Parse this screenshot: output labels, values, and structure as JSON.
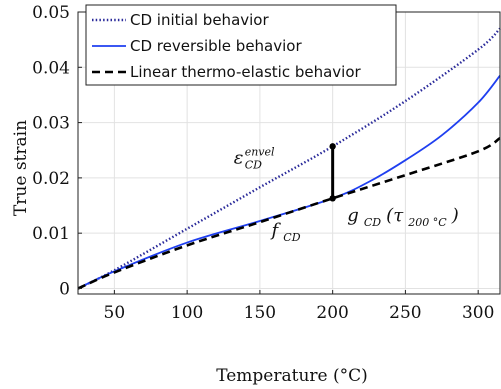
{
  "chart_data": {
    "type": "line",
    "xlabel": "Temperature (°C)",
    "ylabel": "True strain",
    "xlim": [
      25,
      315
    ],
    "ylim": [
      -0.001,
      0.05
    ],
    "x_ticks": [
      50,
      100,
      150,
      200,
      250,
      300
    ],
    "x_tick_labels": [
      "50",
      "100",
      "150",
      "200",
      "250",
      "300"
    ],
    "y_ticks": [
      0,
      0.01,
      0.02,
      0.03,
      0.04,
      0.05
    ],
    "y_tick_labels": [
      "0",
      "0.01",
      "0.02",
      "0.03",
      "0.04",
      "0.05"
    ],
    "grid": true,
    "legend_position": "top-left",
    "series": [
      {
        "name": "CD initial behavior",
        "color": "#2a2a9a",
        "style": "dotted",
        "x": [
          25,
          50,
          100,
          150,
          200,
          250,
          300,
          315
        ],
        "y": [
          0,
          0.0033,
          0.0108,
          0.0183,
          0.0257,
          0.0339,
          0.0432,
          0.047
        ]
      },
      {
        "name": "CD reversible behavior",
        "color": "#1f3ff0",
        "style": "solid",
        "x": [
          25,
          50,
          100,
          150,
          200,
          225,
          250,
          275,
          300,
          315
        ],
        "y": [
          0,
          0.0031,
          0.0083,
          0.0122,
          0.0163,
          0.0193,
          0.0232,
          0.0277,
          0.0336,
          0.0385
        ]
      },
      {
        "name": "Linear thermo-elastic behavior",
        "color": "#000000",
        "style": "dashed",
        "x": [
          25,
          50,
          100,
          150,
          200,
          250,
          300,
          315
        ],
        "y": [
          0,
          0.0029,
          0.0078,
          0.012,
          0.0163,
          0.0205,
          0.0248,
          0.0272
        ]
      }
    ],
    "segment": {
      "x": 200,
      "y_low": 0.0163,
      "y_high": 0.0257
    },
    "annotations": {
      "envel": {
        "main": "ε",
        "sub": "CD",
        "sup": "envel",
        "x": 132,
        "y": 0.0226
      },
      "fcd": {
        "main": "f",
        "sub": "CD",
        "x": 158,
        "y": 0.0095
      },
      "gcd": {
        "main": "g",
        "sub": "CD",
        "paren_open": "(τ",
        "tau_sub": "200 °C",
        "paren_close": ")",
        "x": 210,
        "y": 0.0122
      }
    }
  }
}
